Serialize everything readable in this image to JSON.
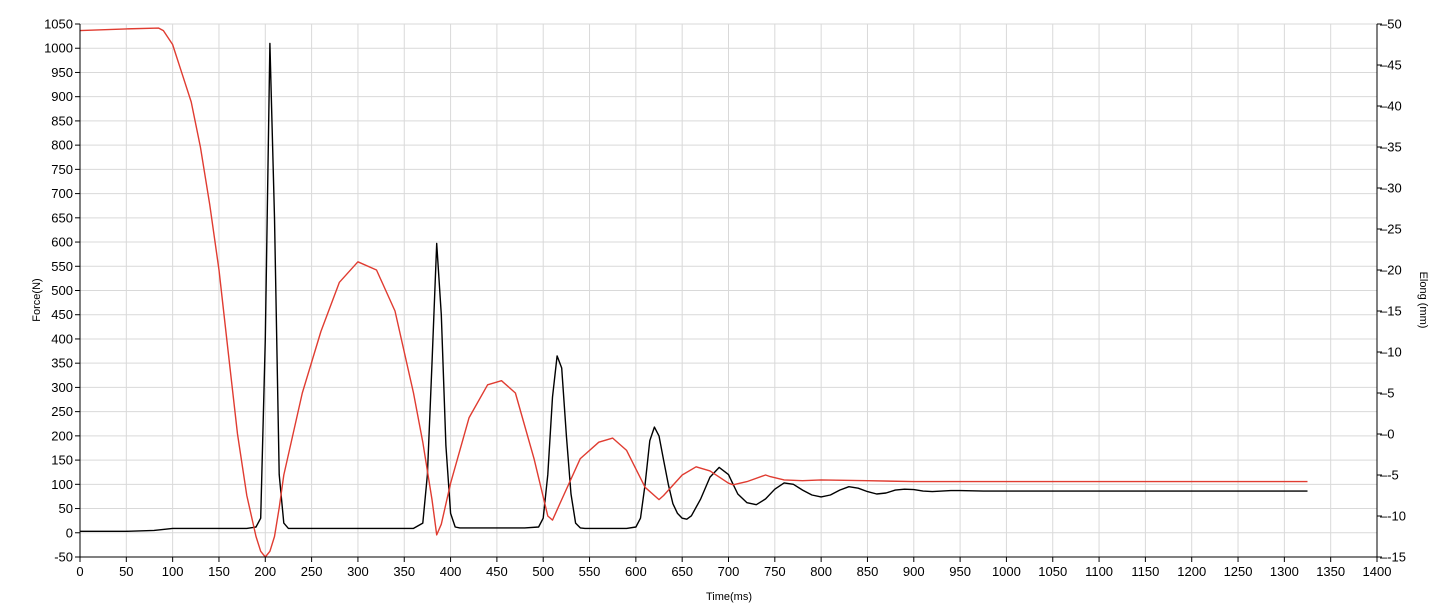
{
  "chart_data": {
    "type": "line",
    "title": "",
    "xlabel": "Time(ms)",
    "ylabel": "Force(N)",
    "y2label": "Elong (mm)",
    "xlim": [
      0,
      1400
    ],
    "ylim": [
      -50,
      1050
    ],
    "y2lim": [
      -15,
      50
    ],
    "x_ticks": [
      0,
      50,
      100,
      150,
      200,
      250,
      300,
      350,
      400,
      450,
      500,
      550,
      600,
      650,
      700,
      750,
      800,
      850,
      900,
      950,
      1000,
      1050,
      1100,
      1150,
      1200,
      1250,
      1300,
      1350,
      1400
    ],
    "y_ticks": [
      -50,
      0,
      50,
      100,
      150,
      200,
      250,
      300,
      350,
      400,
      450,
      500,
      550,
      600,
      650,
      700,
      750,
      800,
      850,
      900,
      950,
      1000,
      1050
    ],
    "y2_ticks": [
      -15,
      -10,
      -5,
      0,
      5,
      10,
      15,
      20,
      25,
      30,
      35,
      40,
      45,
      50
    ],
    "grid": true,
    "legend": "none",
    "series": [
      {
        "axis": "left",
        "color": "#000000",
        "x": [
          0,
          50,
          80,
          100,
          150,
          180,
          190,
          195,
          200,
          205,
          210,
          215,
          220,
          225,
          230,
          300,
          360,
          370,
          375,
          380,
          385,
          390,
          395,
          400,
          405,
          410,
          480,
          495,
          500,
          505,
          510,
          515,
          520,
          525,
          530,
          535,
          540,
          545,
          550,
          590,
          600,
          605,
          610,
          615,
          620,
          625,
          630,
          635,
          640,
          645,
          650,
          655,
          660,
          670,
          680,
          690,
          700,
          705,
          710,
          720,
          730,
          740,
          750,
          760,
          770,
          780,
          790,
          800,
          810,
          820,
          830,
          840,
          850,
          860,
          870,
          880,
          890,
          900,
          910,
          920,
          930,
          940,
          950,
          975,
          1000,
          1050,
          1100,
          1150,
          1200,
          1250,
          1300,
          1325
        ],
        "y": [
          3,
          3,
          5,
          9,
          9,
          9,
          12,
          30,
          400,
          1010,
          650,
          120,
          20,
          9,
          9,
          9,
          9,
          20,
          120,
          350,
          597,
          450,
          180,
          40,
          12,
          10,
          10,
          12,
          30,
          120,
          280,
          365,
          340,
          200,
          80,
          20,
          10,
          9,
          9,
          9,
          12,
          30,
          100,
          190,
          218,
          200,
          150,
          100,
          60,
          40,
          30,
          28,
          35,
          70,
          115,
          135,
          120,
          100,
          80,
          62,
          58,
          70,
          90,
          103,
          100,
          88,
          78,
          74,
          78,
          88,
          95,
          92,
          85,
          80,
          82,
          88,
          90,
          89,
          86,
          85,
          86,
          87,
          87,
          86,
          86,
          86,
          86,
          86,
          86,
          86,
          86,
          86
        ]
      },
      {
        "axis": "right",
        "color": "#e03c31",
        "x": [
          0,
          50,
          85,
          90,
          100,
          110,
          120,
          130,
          140,
          150,
          160,
          170,
          180,
          190,
          195,
          200,
          205,
          210,
          215,
          220,
          240,
          260,
          280,
          300,
          320,
          340,
          360,
          370,
          380,
          385,
          390,
          400,
          420,
          440,
          455,
          470,
          490,
          505,
          510,
          520,
          540,
          560,
          575,
          590,
          610,
          625,
          630,
          650,
          665,
          680,
          700,
          705,
          720,
          740,
          745,
          760,
          780,
          800,
          850,
          900,
          1000,
          1100,
          1200,
          1325
        ],
        "y": [
          49.2,
          49.4,
          49.5,
          49.2,
          47.5,
          44,
          40.5,
          35,
          28,
          20,
          10,
          0,
          -7.5,
          -12.5,
          -14.3,
          -15,
          -14.3,
          -12.5,
          -9,
          -5,
          5,
          12.5,
          18.5,
          21,
          20,
          15,
          5,
          -1,
          -8,
          -12.3,
          -11,
          -6,
          2,
          6,
          6.5,
          5,
          -3,
          -10,
          -10.5,
          -8,
          -3,
          -1,
          -0.5,
          -2,
          -6.5,
          -8,
          -7.5,
          -5,
          -4,
          -4.5,
          -6,
          -6.2,
          -5.8,
          -5,
          -5.2,
          -5.6,
          -5.7,
          -5.6,
          -5.7,
          -5.8,
          -5.8,
          -5.8,
          -5.8,
          -5.8
        ]
      }
    ]
  }
}
